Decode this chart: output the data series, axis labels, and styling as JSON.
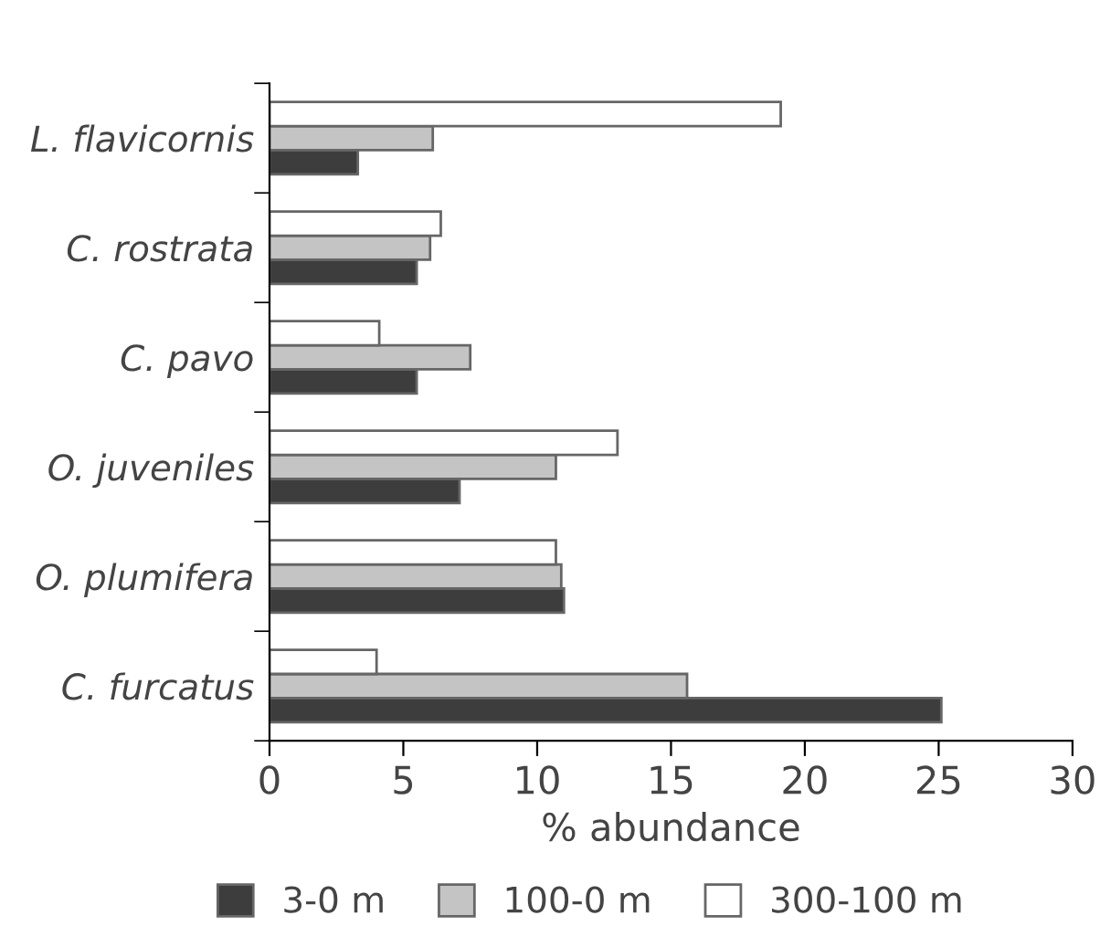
{
  "chart_data": {
    "type": "bar",
    "orientation": "horizontal",
    "xlabel": "% abundance",
    "categories": [
      "L. flavicornis",
      "C. rostrata",
      "C. pavo",
      "O. juveniles",
      "O. plumifera",
      "C. furcatus"
    ],
    "series": [
      {
        "name": "3-0 m",
        "color": "#3d3d3d",
        "values": [
          3.3,
          5.5,
          5.5,
          7.1,
          11.0,
          25.1
        ]
      },
      {
        "name": "100-0 m",
        "color": "#c4c4c4",
        "values": [
          6.1,
          6.0,
          7.5,
          10.7,
          10.9,
          15.6
        ]
      },
      {
        "name": "300-100 m",
        "color": "#ffffff",
        "values": [
          19.1,
          6.4,
          4.1,
          13.0,
          10.7,
          4.0
        ]
      }
    ],
    "xlim": [
      0,
      30
    ],
    "xticks": [
      0,
      5,
      10,
      15,
      20,
      25,
      30
    ],
    "grid": false,
    "legend": "bottom"
  }
}
